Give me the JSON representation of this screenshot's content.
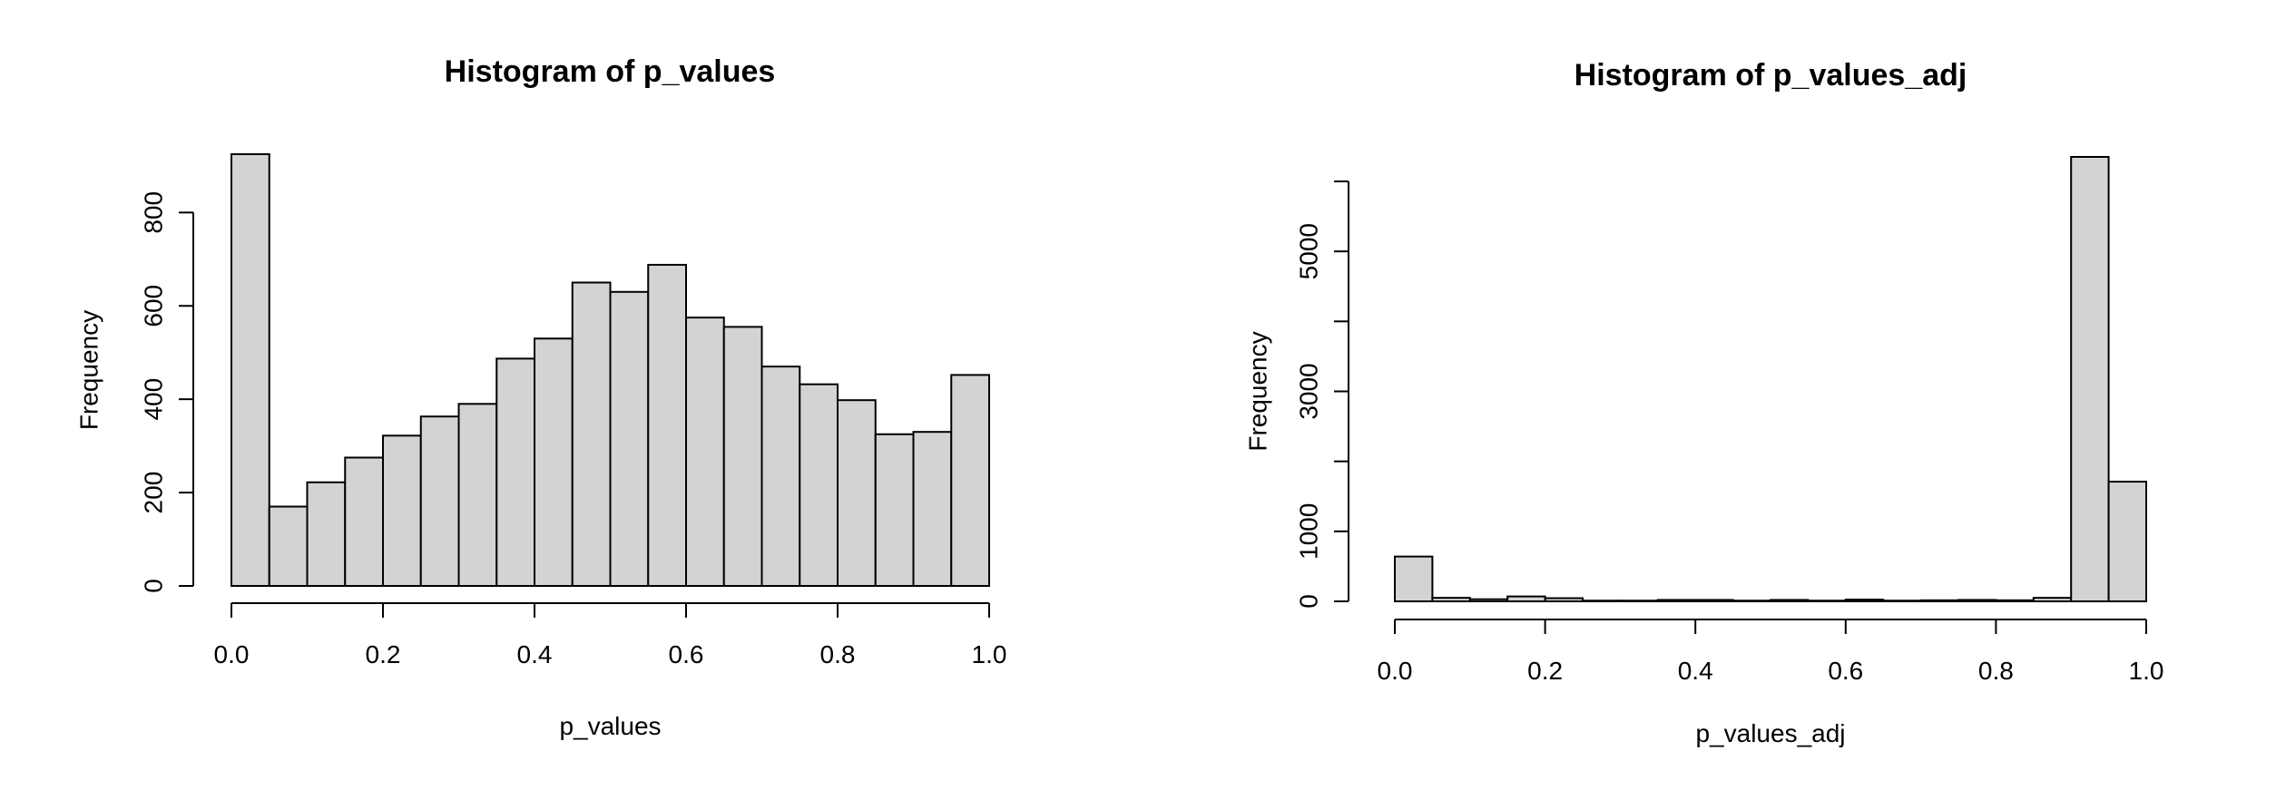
{
  "chart_data": [
    {
      "type": "bar",
      "title": "Histogram of p_values",
      "xlabel": "p_values",
      "ylabel": "Frequency",
      "bin_width": 0.05,
      "bins_start": [
        0.0,
        0.05,
        0.1,
        0.15,
        0.2,
        0.25,
        0.3,
        0.35,
        0.4,
        0.45,
        0.5,
        0.55,
        0.6,
        0.65,
        0.7,
        0.75,
        0.8,
        0.85,
        0.9,
        0.95
      ],
      "values": [
        925,
        170,
        222,
        275,
        322,
        363,
        390,
        487,
        530,
        650,
        630,
        688,
        575,
        555,
        470,
        432,
        398,
        325,
        330,
        452
      ],
      "xlim": [
        0,
        1
      ],
      "ylim": [
        0,
        925
      ],
      "x_ticks": [
        0.0,
        0.2,
        0.4,
        0.6,
        0.8,
        1.0
      ],
      "x_tick_labels": [
        "0.0",
        "0.2",
        "0.4",
        "0.6",
        "0.8",
        "1.0"
      ],
      "y_ticks": [
        0,
        200,
        400,
        600,
        800
      ],
      "y_tick_labels": [
        "0",
        "200",
        "400",
        "600",
        "800"
      ],
      "grid": false,
      "bar_color": "#d3d3d3"
    },
    {
      "type": "bar",
      "title": "Histogram of p_values_adj",
      "xlabel": "p_values_adj",
      "ylabel": "Frequency",
      "bin_width": 0.05,
      "bins_start": [
        0.0,
        0.05,
        0.1,
        0.15,
        0.2,
        0.25,
        0.3,
        0.35,
        0.4,
        0.45,
        0.5,
        0.55,
        0.6,
        0.65,
        0.7,
        0.75,
        0.8,
        0.85,
        0.9,
        0.95
      ],
      "values": [
        640,
        50,
        30,
        70,
        45,
        10,
        10,
        20,
        20,
        10,
        20,
        10,
        25,
        10,
        15,
        20,
        15,
        50,
        6350,
        1710
      ],
      "xlim": [
        0,
        1
      ],
      "ylim": [
        0,
        6000
      ],
      "x_ticks": [
        0.0,
        0.2,
        0.4,
        0.6,
        0.8,
        1.0
      ],
      "x_tick_labels": [
        "0.0",
        "0.2",
        "0.4",
        "0.6",
        "0.8",
        "1.0"
      ],
      "y_ticks": [
        0,
        1000,
        2000,
        3000,
        4000,
        5000,
        6000
      ],
      "y_tick_labels": [
        "0",
        "1000",
        "",
        "3000",
        "",
        "5000",
        ""
      ],
      "grid": false,
      "bar_color": "#d3d3d3"
    }
  ]
}
